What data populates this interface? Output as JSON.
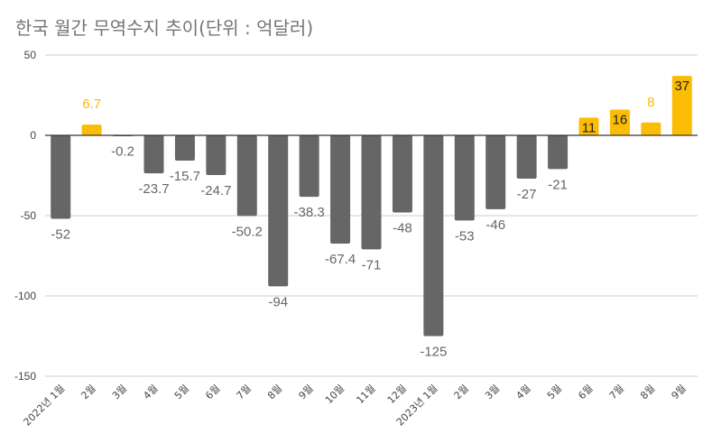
{
  "title": "한국 월간 무역수지 추이(단위 : 억달러)",
  "colors": {
    "positive": "#fbbc04",
    "negative": "#666666",
    "grid": "#cccccc",
    "axis_line": "#333333",
    "label_negative": "#666666",
    "label_positive_outside": "#fbbc04",
    "label_inside": "#222222",
    "tick_label": "#444444"
  },
  "chart_data": {
    "type": "bar",
    "title": "한국 월간 무역수지 추이(단위 : 억달러)",
    "xlabel": "",
    "ylabel": "",
    "ylim": [
      -150,
      50
    ],
    "yticks": [
      50,
      0,
      -50,
      -100,
      -150
    ],
    "grid": true,
    "legend": "none",
    "categories": [
      "2022년 1월",
      "2월",
      "3월",
      "4월",
      "5월",
      "6월",
      "7월",
      "8월",
      "9월",
      "10월",
      "11월",
      "12월",
      "2023년 1월",
      "2월",
      "3월",
      "4월",
      "5월",
      "6월",
      "7월",
      "8월",
      "9월"
    ],
    "values": [
      -52,
      6.7,
      -0.2,
      -23.7,
      -15.7,
      -24.7,
      -50.2,
      -94,
      -38.3,
      -67.4,
      -71,
      -48,
      -125,
      -53,
      -46,
      -27,
      -21,
      11,
      16,
      8,
      37
    ],
    "labels": [
      "-52",
      "6.7",
      "-0.2",
      "-23.7",
      "-15.7",
      "-24.7",
      "-50.2",
      "-94",
      "-38.3",
      "-67.4",
      "-71",
      "-48",
      "-125",
      "-53",
      "-46",
      "-27",
      "-21",
      "11",
      "16",
      "8",
      "37"
    ]
  }
}
